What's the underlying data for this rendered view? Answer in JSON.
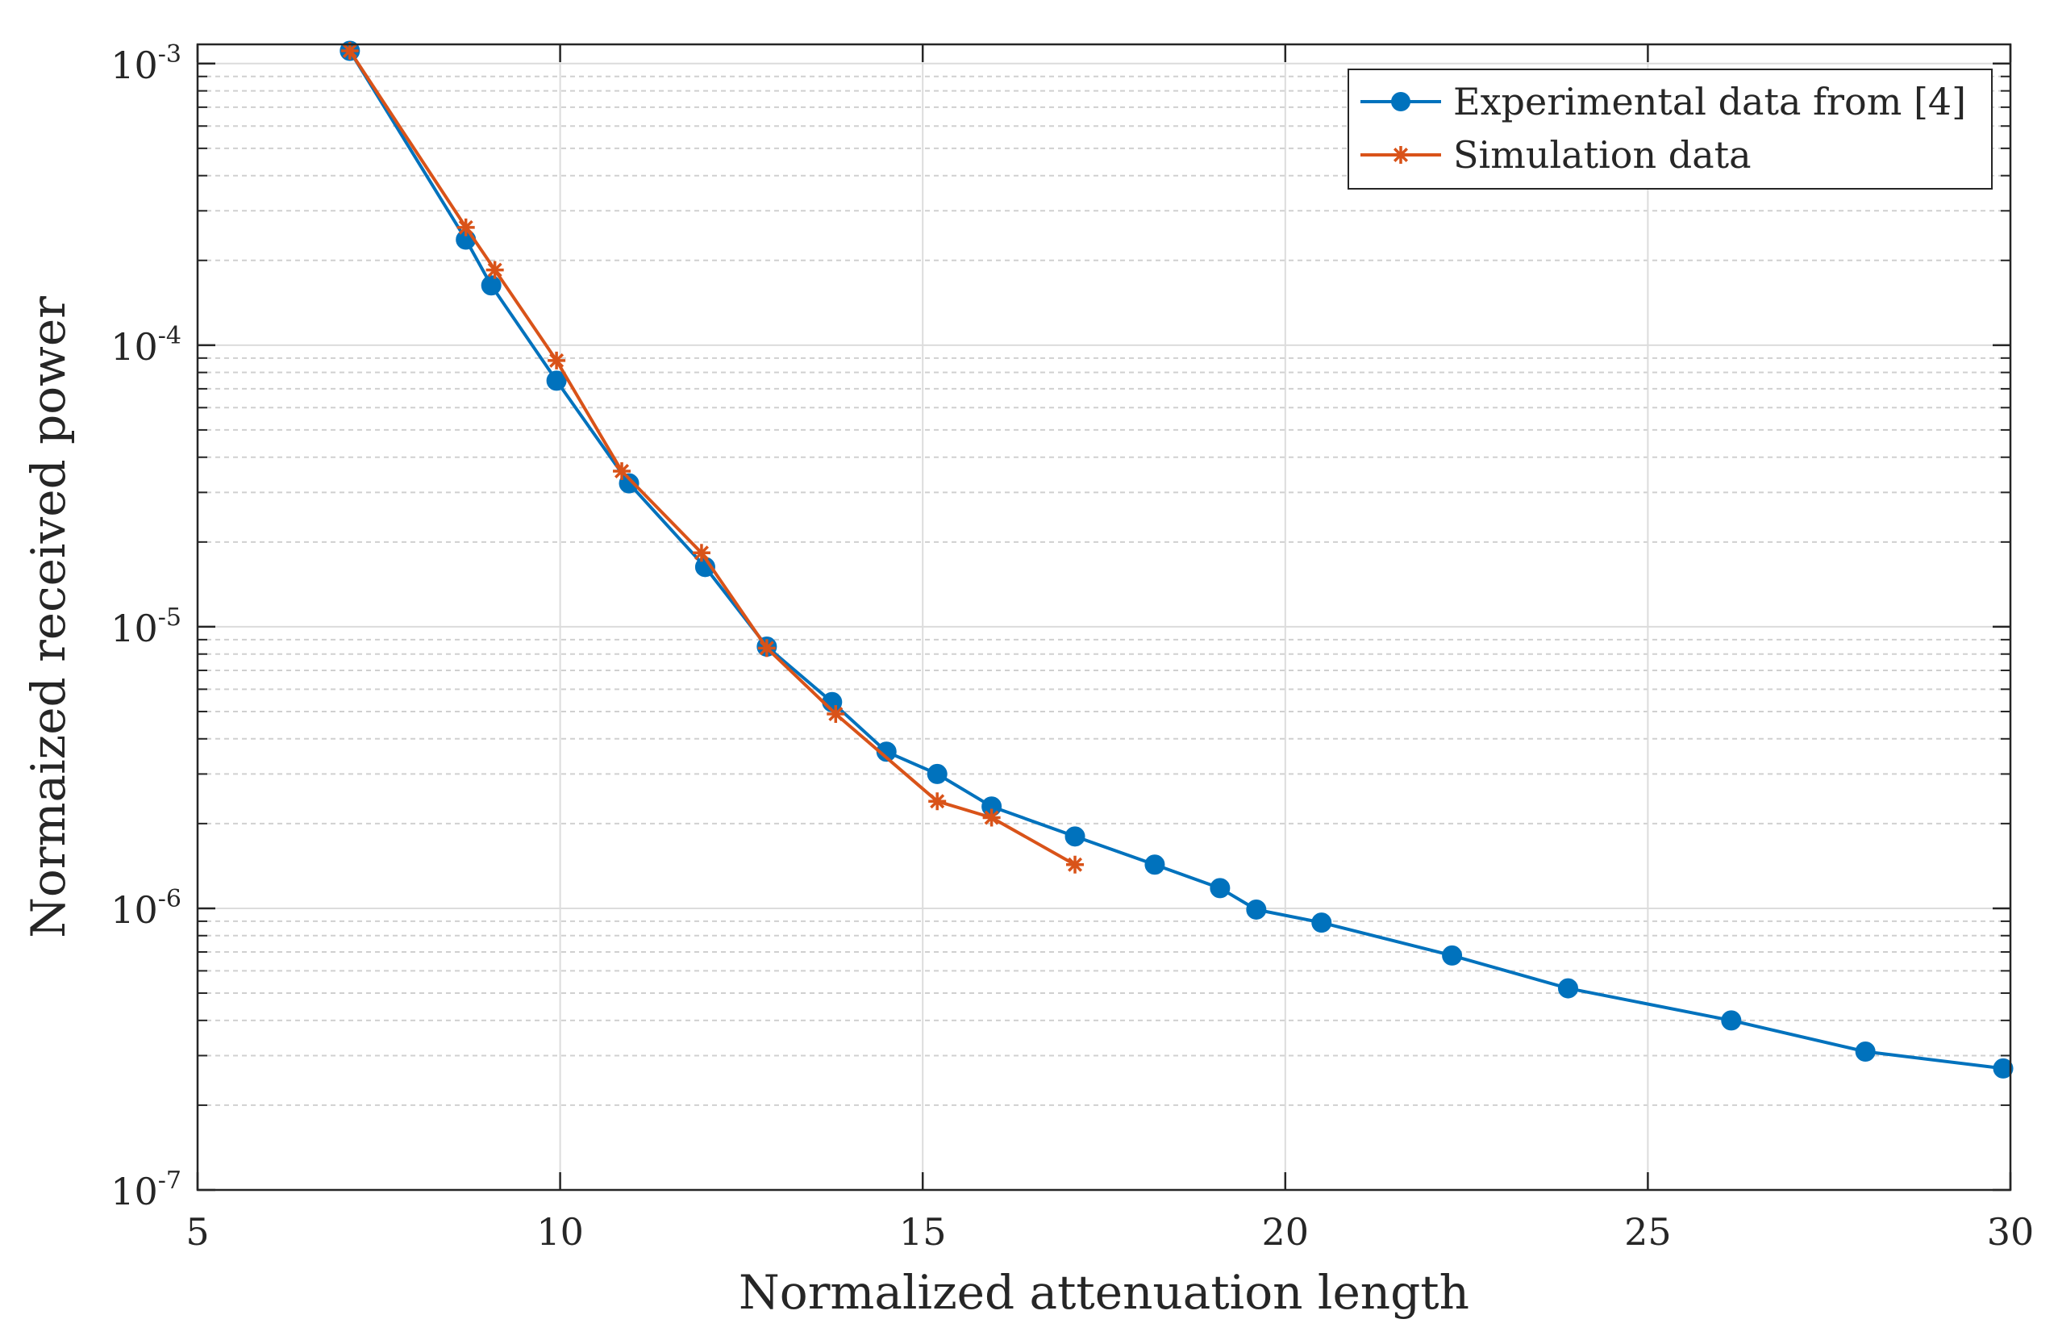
{
  "chart_data": {
    "type": "line",
    "title": "",
    "xlabel": "Normalized attenuation length",
    "ylabel": "Normaized received power",
    "xlim": [
      5,
      30
    ],
    "ylim": [
      1e-07,
      0.00117
    ],
    "yscale": "log",
    "grid": true,
    "legend_position": "top-right",
    "x_ticks": [
      5,
      10,
      15,
      20,
      25,
      30
    ],
    "x_tick_labels": [
      "5",
      "10",
      "15",
      "20",
      "25",
      "30"
    ],
    "y_ticks": [
      {
        "value": 1e-07,
        "base": "10",
        "exp": "-7"
      },
      {
        "value": 1e-06,
        "base": "10",
        "exp": "-6"
      },
      {
        "value": 1e-05,
        "base": "10",
        "exp": "-5"
      },
      {
        "value": 0.0001,
        "base": "10",
        "exp": "-4"
      },
      {
        "value": 0.001,
        "base": "10",
        "exp": "-3"
      }
    ],
    "series": [
      {
        "name": "Experimental data from [4]",
        "color": "#0072BD",
        "marker": "circle",
        "x": [
          7.1,
          8.7,
          9.05,
          9.95,
          10.95,
          12.0,
          12.85,
          13.75,
          14.5,
          15.2,
          15.95,
          17.1,
          18.2,
          19.1,
          19.6,
          20.5,
          22.3,
          23.9,
          26.15,
          28.0,
          29.9
        ],
        "y": [
          0.00111,
          0.000237,
          0.000163,
          7.48e-05,
          3.23e-05,
          1.63e-05,
          8.5e-06,
          5.4e-06,
          3.6e-06,
          3e-06,
          2.3e-06,
          1.8e-06,
          1.43e-06,
          1.18e-06,
          9.9e-07,
          8.9e-07,
          6.8e-07,
          5.2e-07,
          4e-07,
          3.1e-07,
          2.7e-07
        ]
      },
      {
        "name": "Simulation data",
        "color": "#D95319",
        "marker": "asterisk",
        "x": [
          7.1,
          8.7,
          9.1,
          9.95,
          10.85,
          11.95,
          12.85,
          13.8,
          15.2,
          15.95,
          17.1
        ],
        "y": [
          0.00111,
          0.000262,
          0.000185,
          8.82e-05,
          3.57e-05,
          1.83e-05,
          8.4e-06,
          4.9e-06,
          2.4e-06,
          2.1e-06,
          1.43e-06
        ]
      }
    ]
  }
}
